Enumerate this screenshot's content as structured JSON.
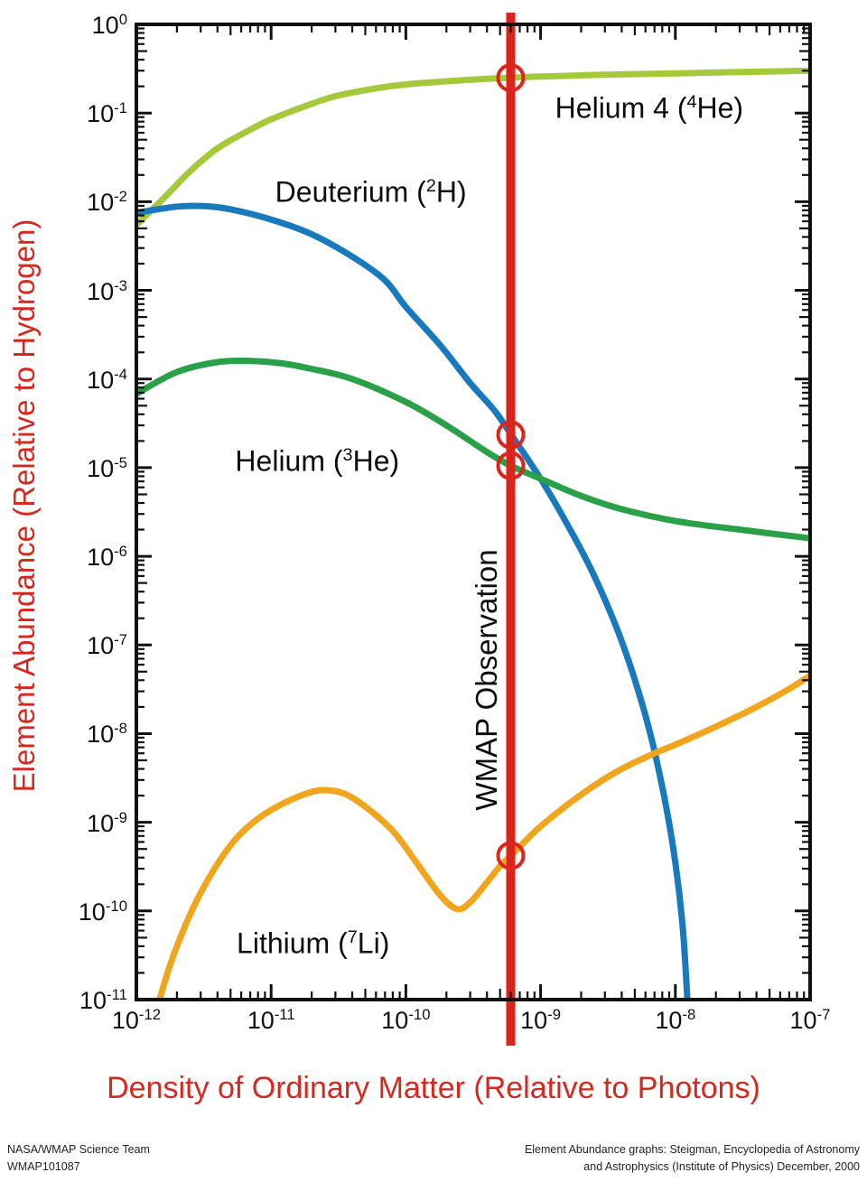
{
  "credits": {
    "left_line1": "NASA/WMAP Science Team",
    "left_line2": "WMAP101087",
    "right_line1": "Element Abundance graphs: Steigman, Encyclopedia of Astronomy",
    "right_line2": "and Astrophysics (Institute of Physics) December, 2000"
  },
  "colors": {
    "helium4": "#a5c93b",
    "deuterium": "#1879bd",
    "helium3": "#2aa148",
    "lithium": "#f1a51c",
    "wmap_red": "#dc241c",
    "axis_title_red": "#d8281e",
    "axis_black": "#111111"
  },
  "chart_data": {
    "type": "line",
    "title": "",
    "xlabel": "Density of Ordinary Matter (Relative to Photons)",
    "ylabel": "Element Abundance (Relative to Hydrogen)",
    "x_axis": {
      "scale": "log",
      "min": 1e-12,
      "max": 1e-07,
      "tick_labels": [
        "10^{-12}",
        "10^{-11}",
        "10^{-10}",
        "10^{-9}",
        "10^{-8}",
        "10^{-7}"
      ],
      "tick_exponents": [
        -12,
        -11,
        -10,
        -9,
        -8,
        -7
      ]
    },
    "y_axis": {
      "scale": "log",
      "min": 1e-11,
      "max": 1,
      "tick_labels": [
        "10^{0}",
        "10^{-1}",
        "10^{-2}",
        "10^{-3}",
        "10^{-4}",
        "10^{-5}",
        "10^{-6}",
        "10^{-7}",
        "10^{-8}",
        "10^{-9}",
        "10^{-10}",
        "10^{-11}"
      ],
      "tick_exponents": [
        0,
        -1,
        -2,
        -3,
        -4,
        -5,
        -6,
        -7,
        -8,
        -9,
        -10,
        -11
      ]
    },
    "grid": false,
    "legend": "inline-labels",
    "series": [
      {
        "name": "Helium 4 (4He)",
        "label": "Helium 4 (^{4}He)",
        "color_key": "helium4",
        "label_anchor": {
          "x": 6.4e-09,
          "y": 0.112
        },
        "points": [
          [
            1e-12,
            0.0055
          ],
          [
            1.6e-12,
            0.011
          ],
          [
            2.5e-12,
            0.022
          ],
          [
            4e-12,
            0.04
          ],
          [
            7e-12,
            0.065
          ],
          [
            1e-11,
            0.085
          ],
          [
            1.8e-11,
            0.12
          ],
          [
            3e-11,
            0.155
          ],
          [
            6e-11,
            0.19
          ],
          [
            1e-10,
            0.21
          ],
          [
            2e-10,
            0.228
          ],
          [
            4e-10,
            0.243
          ],
          [
            6e-10,
            0.25
          ],
          [
            1e-09,
            0.258
          ],
          [
            3e-09,
            0.27
          ],
          [
            1e-08,
            0.28
          ],
          [
            3e-08,
            0.29
          ],
          [
            1e-07,
            0.3
          ]
        ]
      },
      {
        "name": "Deuterium (2H)",
        "label": "Deuterium (^{2}H)",
        "color_key": "deuterium",
        "label_anchor": {
          "x": 5.5e-11,
          "y": 0.0128
        },
        "points": [
          [
            1e-12,
            0.0075
          ],
          [
            2e-12,
            0.0088
          ],
          [
            3.2e-12,
            0.0089
          ],
          [
            5e-12,
            0.0082
          ],
          [
            1e-11,
            0.0063
          ],
          [
            2e-11,
            0.0043
          ],
          [
            4e-11,
            0.0024
          ],
          [
            7e-11,
            0.0013
          ],
          [
            1e-10,
            0.00065
          ],
          [
            1.8e-10,
            0.00024
          ],
          [
            3e-10,
            9e-05
          ],
          [
            4.5e-10,
            4.5e-05
          ],
          [
            6e-10,
            2.4e-05
          ],
          [
            1e-09,
            7.5e-06
          ],
          [
            1.6e-09,
            2.2e-06
          ],
          [
            2.5e-09,
            6e-07
          ],
          [
            4e-09,
            1.1e-07
          ],
          [
            6e-09,
            1.6e-08
          ],
          [
            8e-09,
            2.5e-09
          ],
          [
            1e-08,
            3.5e-10
          ],
          [
            1.15e-08,
            5e-11
          ],
          [
            1.3e-08,
            2e-12
          ]
        ]
      },
      {
        "name": "Helium (3He)",
        "label": "Helium (^{3}He)",
        "color_key": "helium3",
        "label_anchor": {
          "x": 2.2e-11,
          "y": 1.17e-05
        },
        "points": [
          [
            1e-12,
            6.8e-05
          ],
          [
            2e-12,
            0.00012
          ],
          [
            4e-12,
            0.000155
          ],
          [
            7e-12,
            0.00016
          ],
          [
            1.2e-11,
            0.00015
          ],
          [
            2e-11,
            0.00013
          ],
          [
            4e-11,
            0.0001
          ],
          [
            1e-10,
            5.5e-05
          ],
          [
            2e-10,
            3e-05
          ],
          [
            4e-10,
            1.5e-05
          ],
          [
            6e-10,
            1.05e-05
          ],
          [
            1e-09,
            7.5e-06
          ],
          [
            2e-09,
            4.8e-06
          ],
          [
            4e-09,
            3.4e-06
          ],
          [
            1e-08,
            2.5e-06
          ],
          [
            3e-08,
            2e-06
          ],
          [
            1e-07,
            1.6e-06
          ]
        ]
      },
      {
        "name": "Lithium (7Li)",
        "label": "Lithium (^{7}Li)",
        "color_key": "lithium",
        "label_anchor": {
          "x": 2.05e-11,
          "y": 4.3e-11
        },
        "points": [
          [
            1.4e-12,
            6e-12
          ],
          [
            1.5e-12,
            1.05e-11
          ],
          [
            2e-12,
            4e-11
          ],
          [
            3e-12,
            1.6e-10
          ],
          [
            5e-12,
            5.5e-10
          ],
          [
            8e-12,
            1.1e-09
          ],
          [
            1.3e-11,
            1.7e-09
          ],
          [
            2e-11,
            2.2e-09
          ],
          [
            2.6e-11,
            2.3e-09
          ],
          [
            3.5e-11,
            2.1e-09
          ],
          [
            5e-11,
            1.5e-09
          ],
          [
            8e-11,
            8e-10
          ],
          [
            1.2e-10,
            3.5e-10
          ],
          [
            1.8e-10,
            1.5e-10
          ],
          [
            2.4e-10,
            1.05e-10
          ],
          [
            3e-10,
            1.25e-10
          ],
          [
            4e-10,
            2.1e-10
          ],
          [
            5e-10,
            3.2e-10
          ],
          [
            6e-10,
            4.2e-10
          ],
          [
            8e-10,
            6.5e-10
          ],
          [
            1e-09,
            9e-10
          ],
          [
            1.6e-09,
            1.6e-09
          ],
          [
            2.5e-09,
            2.6e-09
          ],
          [
            4e-09,
            4e-09
          ],
          [
            7e-09,
            6e-09
          ],
          [
            1e-08,
            7.5e-09
          ],
          [
            2e-08,
            1.2e-08
          ],
          [
            4e-08,
            2e-08
          ],
          [
            7e-08,
            3.2e-08
          ],
          [
            1e-07,
            4.5e-08
          ]
        ]
      }
    ],
    "annotations": {
      "wmap_line": {
        "label": "WMAP Observation",
        "x": 6e-10,
        "label_anchor": {
          "x": 4e-10,
          "y": 4e-08
        }
      },
      "observation_markers": [
        {
          "series": "Helium 4 (4He)",
          "x": 6e-10,
          "y": 0.25
        },
        {
          "series": "Deuterium (2H)",
          "x": 6e-10,
          "y": 2.35e-05
        },
        {
          "series": "Helium (3He)",
          "x": 6e-10,
          "y": 1.05e-05
        },
        {
          "series": "Lithium (7Li)",
          "x": 6e-10,
          "y": 4.2e-10
        }
      ]
    }
  }
}
